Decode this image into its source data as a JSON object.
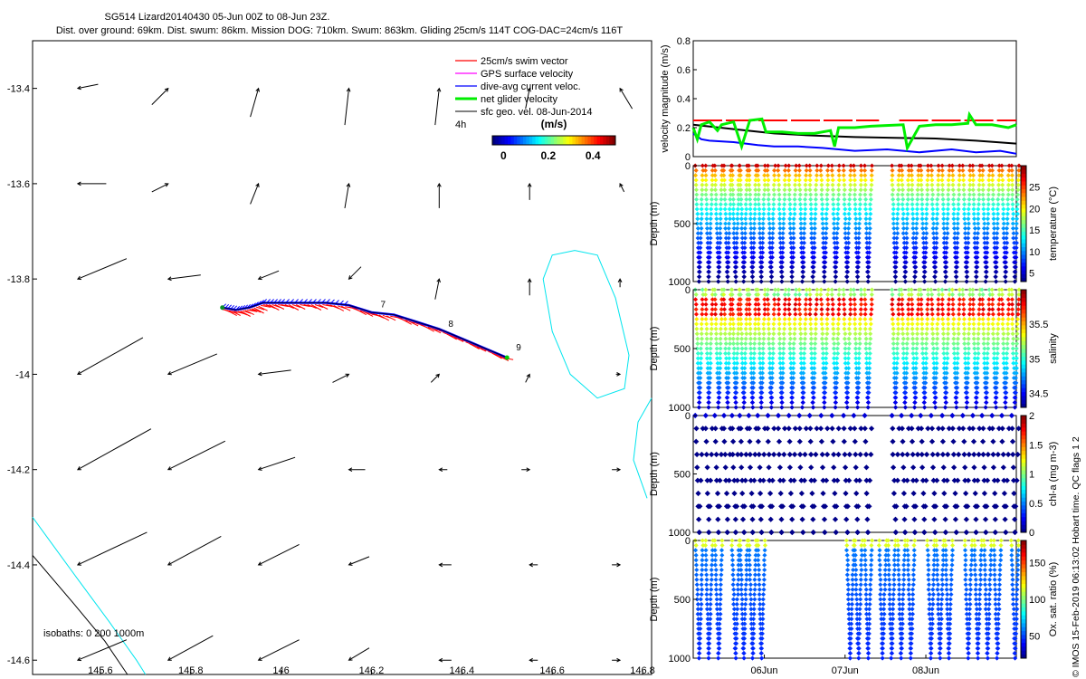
{
  "header": {
    "title_line1": "SG514 Lizard20140430 05-Jun 00Z to 08-Jun 23Z.",
    "title_line2": "Dist. over ground: 69km. Dist. swum: 86km. Mission DOG: 710km. Swum: 863km. Gliding 25cm/s 114T COG-DAC=24cm/s 116T"
  },
  "footer_note": "© IMOS 15-Feb-2019 06:13:02 Hobart time. QC flags 1  2",
  "colors": {
    "swim": "#ff0000",
    "gps": "#ff00ff",
    "dac": "#0000ff",
    "net": "#00ee00",
    "geo": "#000000",
    "isobath": "#00e5ee",
    "isobath_deep": "#000000"
  },
  "chart_data": [
    {
      "id": "map",
      "type": "scatter",
      "title": "Glider track and velocity vectors",
      "xlabel": "",
      "ylabel": "",
      "xlim": [
        145.45,
        146.82
      ],
      "ylim": [
        -14.63,
        -13.3
      ],
      "xticks": [
        145.6,
        145.8,
        146,
        146.2,
        146.4,
        146.6,
        146.8
      ],
      "xtick_labels": [
        "145.6",
        "145.8",
        "146",
        "146.2",
        "146.4",
        "146.6",
        "146.8"
      ],
      "yticks": [
        -13.4,
        -13.6,
        -13.8,
        -14,
        -14.2,
        -14.4,
        -14.6
      ],
      "ytick_labels": [
        "-13.4",
        "-13.6",
        "-13.8",
        "-14",
        "-14.2",
        "-14.4",
        "-14.6"
      ],
      "legend": {
        "position": "top-right",
        "entries": [
          "25cm/s swim vector",
          "GPS surface velocity",
          "dive-avg current veloc.",
          "net glider velocity",
          "sfc geo. vel. 08-Jun-2014"
        ],
        "scale_label": "4h",
        "colorbar_label": "(m/s)",
        "colorbar_ticks": [
          "0",
          "0.2",
          "0.4"
        ],
        "colorbar_range": [
          -0.05,
          0.5
        ]
      },
      "isobath_label": "isobaths: 0   200  1000m",
      "track": [
        [
          145.87,
          -13.86
        ],
        [
          145.9,
          -13.865
        ],
        [
          145.93,
          -13.86
        ],
        [
          145.96,
          -13.85
        ],
        [
          146.0,
          -13.85
        ],
        [
          146.05,
          -13.85
        ],
        [
          146.1,
          -13.85
        ],
        [
          146.15,
          -13.855
        ],
        [
          146.2,
          -13.87
        ],
        [
          146.25,
          -13.875
        ],
        [
          146.3,
          -13.89
        ],
        [
          146.35,
          -13.905
        ],
        [
          146.4,
          -13.925
        ],
        [
          146.45,
          -13.945
        ],
        [
          146.5,
          -13.965
        ]
      ],
      "day_labels": [
        {
          "text": "7",
          "x": 146.22,
          "y": -13.86
        },
        {
          "text": "8",
          "x": 146.37,
          "y": -13.9
        },
        {
          "text": "9",
          "x": 146.52,
          "y": -13.95
        }
      ],
      "geo_vectors": [
        {
          "x": 145.55,
          "y": -13.4,
          "u": 0.05,
          "v": 0.01
        },
        {
          "x": 145.75,
          "y": -13.4,
          "u": -0.04,
          "v": -0.04
        },
        {
          "x": 145.95,
          "y": -13.4,
          "u": -0.02,
          "v": -0.07
        },
        {
          "x": 146.15,
          "y": -13.4,
          "u": -0.01,
          "v": -0.09
        },
        {
          "x": 146.35,
          "y": -13.4,
          "u": -0.01,
          "v": -0.09
        },
        {
          "x": 146.55,
          "y": -13.4,
          "u": -0.01,
          "v": -0.05
        },
        {
          "x": 146.75,
          "y": -13.4,
          "u": 0.03,
          "v": -0.05
        },
        {
          "x": 145.55,
          "y": -13.6,
          "u": 0.07,
          "v": 0.0
        },
        {
          "x": 145.75,
          "y": -13.6,
          "u": -0.04,
          "v": -0.02
        },
        {
          "x": 145.95,
          "y": -13.6,
          "u": -0.02,
          "v": -0.05
        },
        {
          "x": 146.15,
          "y": -13.6,
          "u": -0.01,
          "v": -0.06
        },
        {
          "x": 146.35,
          "y": -13.6,
          "u": 0.0,
          "v": -0.06
        },
        {
          "x": 146.55,
          "y": -13.6,
          "u": 0.0,
          "v": -0.04
        },
        {
          "x": 146.75,
          "y": -13.6,
          "u": 0.01,
          "v": -0.02
        },
        {
          "x": 145.55,
          "y": -13.8,
          "u": 0.12,
          "v": 0.05
        },
        {
          "x": 145.75,
          "y": -13.8,
          "u": 0.08,
          "v": 0.01
        },
        {
          "x": 145.95,
          "y": -13.8,
          "u": 0.05,
          "v": 0.02
        },
        {
          "x": 146.15,
          "y": -13.8,
          "u": 0.03,
          "v": 0.03
        },
        {
          "x": 146.35,
          "y": -13.8,
          "u": -0.01,
          "v": -0.05
        },
        {
          "x": 146.55,
          "y": -13.8,
          "u": 0.0,
          "v": -0.04
        },
        {
          "x": 146.75,
          "y": -13.8,
          "u": 0.0,
          "v": -0.02
        },
        {
          "x": 145.55,
          "y": -14.0,
          "u": 0.16,
          "v": 0.09
        },
        {
          "x": 145.75,
          "y": -14.0,
          "u": 0.12,
          "v": 0.05
        },
        {
          "x": 145.95,
          "y": -14.0,
          "u": 0.08,
          "v": 0.01
        },
        {
          "x": 146.15,
          "y": -14.0,
          "u": -0.04,
          "v": -0.02
        },
        {
          "x": 146.35,
          "y": -14.0,
          "u": -0.02,
          "v": -0.02
        },
        {
          "x": 146.55,
          "y": -14.0,
          "u": -0.01,
          "v": -0.02
        },
        {
          "x": 146.75,
          "y": -14.0,
          "u": -0.01,
          "v": 0.0
        },
        {
          "x": 145.55,
          "y": -14.2,
          "u": 0.18,
          "v": 0.1
        },
        {
          "x": 145.75,
          "y": -14.2,
          "u": 0.14,
          "v": 0.07
        },
        {
          "x": 145.95,
          "y": -14.2,
          "u": 0.09,
          "v": 0.03
        },
        {
          "x": 146.15,
          "y": -14.2,
          "u": 0.04,
          "v": 0.0
        },
        {
          "x": 146.35,
          "y": -14.2,
          "u": 0.02,
          "v": 0.0
        },
        {
          "x": 146.55,
          "y": -14.2,
          "u": -0.02,
          "v": 0.0
        },
        {
          "x": 146.75,
          "y": -14.2,
          "u": -0.02,
          "v": 0.0
        },
        {
          "x": 145.55,
          "y": -14.4,
          "u": 0.17,
          "v": 0.08
        },
        {
          "x": 145.75,
          "y": -14.4,
          "u": 0.13,
          "v": 0.07
        },
        {
          "x": 145.95,
          "y": -14.4,
          "u": 0.1,
          "v": 0.05
        },
        {
          "x": 146.15,
          "y": -14.4,
          "u": 0.05,
          "v": 0.02
        },
        {
          "x": 146.35,
          "y": -14.4,
          "u": 0.03,
          "v": 0.0
        },
        {
          "x": 146.55,
          "y": -14.4,
          "u": 0.02,
          "v": 0.0
        },
        {
          "x": 146.75,
          "y": -14.4,
          "u": -0.02,
          "v": 0.0
        },
        {
          "x": 145.55,
          "y": -14.6,
          "u": 0.12,
          "v": 0.05
        },
        {
          "x": 145.75,
          "y": -14.6,
          "u": 0.11,
          "v": 0.06
        },
        {
          "x": 145.95,
          "y": -14.6,
          "u": 0.1,
          "v": 0.05
        },
        {
          "x": 146.15,
          "y": -14.6,
          "u": 0.05,
          "v": 0.03
        },
        {
          "x": 146.35,
          "y": -14.6,
          "u": 0.03,
          "v": 0.0
        },
        {
          "x": 146.55,
          "y": -14.6,
          "u": 0.02,
          "v": 0.0
        },
        {
          "x": 146.75,
          "y": -14.6,
          "u": -0.02,
          "v": 0.0
        }
      ],
      "isobaths": [
        {
          "depth": "0",
          "points": [
            [
              146.65,
              -13.74
            ],
            [
              146.7,
              -13.75
            ],
            [
              146.74,
              -13.84
            ],
            [
              146.77,
              -13.96
            ],
            [
              146.76,
              -14.03
            ],
            [
              146.7,
              -14.05
            ],
            [
              146.64,
              -14.0
            ],
            [
              146.6,
              -13.91
            ],
            [
              146.58,
              -13.8
            ],
            [
              146.6,
              -13.75
            ],
            [
              146.65,
              -13.74
            ]
          ]
        },
        {
          "depth": "0",
          "points": [
            [
              146.82,
              -14.05
            ],
            [
              146.79,
              -14.1
            ],
            [
              146.78,
              -14.18
            ],
            [
              146.81,
              -14.26
            ]
          ]
        },
        {
          "depth": "0",
          "points": [
            [
              145.45,
              -14.3
            ],
            [
              145.55,
              -14.43
            ],
            [
              145.62,
              -14.52
            ],
            [
              145.68,
              -14.6
            ],
            [
              145.7,
              -14.63
            ]
          ]
        },
        {
          "depth": "1000",
          "points": [
            [
              145.45,
              -14.38
            ],
            [
              145.54,
              -14.48
            ],
            [
              145.61,
              -14.56
            ],
            [
              145.66,
              -14.63
            ]
          ]
        }
      ]
    },
    {
      "id": "velocity",
      "type": "line",
      "title": "",
      "xlabel": "",
      "ylabel": "velocity magnitude (m/s)",
      "xlim": [
        0,
        4
      ],
      "ylim": [
        0,
        0.8
      ],
      "yticks": [
        0,
        0.2,
        0.4,
        0.6,
        0.8
      ],
      "ytick_labels": [
        "0",
        "0.2",
        "0.4",
        "0.6",
        "0.8"
      ],
      "series": [
        {
          "name": "25cm/s swim vector",
          "x": [
            0,
            2.3,
            2.33,
            2.55,
            2.6,
            4
          ],
          "values": [
            0.25,
            0.25,
            null,
            0.25,
            0.25,
            0.25
          ]
        },
        {
          "name": "sfc geo. vel.",
          "x": [
            0,
            0.5,
            1,
            1.5,
            2,
            2.5,
            3,
            3.5,
            4
          ],
          "values": [
            0.22,
            0.19,
            0.16,
            0.145,
            0.135,
            0.13,
            0.125,
            0.11,
            0.09
          ]
        },
        {
          "name": "dive-avg current veloc.",
          "x": [
            0,
            0.1,
            0.2,
            0.5,
            0.8,
            1.0,
            1.3,
            1.6,
            2.0,
            2.4,
            2.8,
            3.2,
            3.5,
            3.8,
            4
          ],
          "values": [
            0.16,
            0.12,
            0.11,
            0.1,
            0.08,
            0.07,
            0.07,
            0.06,
            0.04,
            0.05,
            0.03,
            0.05,
            0.03,
            0.04,
            0.02
          ]
        },
        {
          "name": "net glider velocity",
          "x": [
            0,
            0.05,
            0.1,
            0.2,
            0.3,
            0.35,
            0.5,
            0.6,
            0.7,
            0.85,
            0.9,
            1.0,
            1.1,
            1.3,
            1.5,
            1.7,
            1.75,
            1.8,
            2.0,
            2.2,
            2.6,
            2.65,
            2.8,
            3.0,
            3.2,
            3.4,
            3.42,
            3.5,
            3.7,
            3.9,
            4
          ],
          "values": [
            0.2,
            0.12,
            0.22,
            0.24,
            0.18,
            0.22,
            0.24,
            0.07,
            0.25,
            0.26,
            0.17,
            0.17,
            0.17,
            0.16,
            0.16,
            0.18,
            0.07,
            0.2,
            0.2,
            0.21,
            0.22,
            0.06,
            0.21,
            0.22,
            0.22,
            0.23,
            0.29,
            0.22,
            0.22,
            0.2,
            0.22
          ]
        }
      ]
    },
    {
      "id": "temperature",
      "type": "scatter",
      "ylabel": "Depth (m)",
      "colorbar_label": "temperature (°C)",
      "ylim": [
        1000,
        0
      ],
      "yticks": [
        0,
        500,
        1000
      ],
      "ytick_labels": [
        "0",
        "500",
        "1000"
      ],
      "color_range": [
        3,
        30
      ],
      "colorbar_ticks": [
        5,
        10,
        15,
        20,
        25
      ],
      "colorbar_tick_labels": [
        "5",
        "10",
        "15",
        "20",
        "25"
      ],
      "profile_type": "temperature",
      "dives": [
        0.03,
        0.15,
        0.27,
        0.38,
        0.48,
        0.58,
        0.69,
        0.8,
        0.92,
        1.05,
        1.18,
        1.31,
        1.44,
        1.58,
        1.72,
        1.86,
        1.99,
        2.12,
        2.46,
        2.58,
        2.7,
        2.82,
        2.95,
        3.08,
        3.21,
        3.34,
        3.46,
        3.58,
        3.7,
        3.82,
        3.94
      ],
      "gaps": [
        [
          2.25,
          2.4
        ]
      ]
    },
    {
      "id": "salinity",
      "type": "scatter",
      "ylabel": "Depth (m)",
      "colorbar_label": "salinity",
      "ylim": [
        1000,
        0
      ],
      "yticks": [
        0,
        500,
        1000
      ],
      "ytick_labels": [
        "0",
        "500",
        "1000"
      ],
      "color_range": [
        34.3,
        36.0
      ],
      "colorbar_ticks": [
        34.5,
        35,
        35.5
      ],
      "colorbar_tick_labels": [
        "34.5",
        "35",
        "35.5"
      ],
      "profile_type": "salinity",
      "dives": [
        0.03,
        0.15,
        0.27,
        0.38,
        0.48,
        0.58,
        0.69,
        0.8,
        0.92,
        1.05,
        1.18,
        1.31,
        1.44,
        1.58,
        1.72,
        1.86,
        1.99,
        2.12,
        2.46,
        2.58,
        2.7,
        2.82,
        2.95,
        3.08,
        3.21,
        3.34,
        3.46,
        3.58,
        3.7,
        3.82,
        3.94
      ],
      "gaps": [
        [
          2.25,
          2.4
        ]
      ]
    },
    {
      "id": "chla",
      "type": "scatter",
      "ylabel": "Depth (m)",
      "colorbar_label": "chl-a (mg m-3)",
      "ylim": [
        1000,
        0
      ],
      "yticks": [
        0,
        500,
        1000
      ],
      "ytick_labels": [
        "0",
        "500",
        "1000"
      ],
      "color_range": [
        0,
        2
      ],
      "colorbar_ticks": [
        0,
        0.5,
        1,
        1.5,
        2
      ],
      "colorbar_tick_labels": [
        "0",
        "0.5",
        "1",
        "1.5",
        "2"
      ],
      "profile_type": "chla",
      "dives": [
        0.03,
        0.15,
        0.27,
        0.38,
        0.48,
        0.58,
        0.69,
        0.8,
        0.92,
        1.05,
        1.18,
        1.31,
        1.44,
        1.58,
        1.72,
        1.86,
        1.99,
        2.12,
        2.46,
        2.58,
        2.7,
        2.82,
        2.95,
        3.08,
        3.21,
        3.34,
        3.46,
        3.58,
        3.7,
        3.82,
        3.94
      ],
      "gaps": [
        [
          2.25,
          2.4
        ]
      ]
    },
    {
      "id": "oxygen",
      "type": "scatter",
      "ylabel": "Depth (m)",
      "colorbar_label": "Ox. sat. ratio (%)",
      "ylim": [
        1000,
        0
      ],
      "yticks": [
        0,
        500,
        1000
      ],
      "ytick_labels": [
        "0",
        "500",
        "1000"
      ],
      "xticks": [
        0.88,
        1.88,
        2.88
      ],
      "xtick_labels": [
        "06Jun",
        "07Jun",
        "08Jun"
      ],
      "color_range": [
        20,
        180
      ],
      "colorbar_ticks": [
        50,
        100,
        150
      ],
      "colorbar_tick_labels": [
        "50",
        "100",
        "150"
      ],
      "profile_type": "oxygen",
      "dives": [
        0.03,
        0.15,
        0.27,
        0.48,
        0.58,
        0.69,
        0.8,
        1.9,
        2.0,
        2.12,
        2.3,
        2.41,
        2.53,
        2.65,
        2.9,
        3.01,
        3.12,
        3.36,
        3.48,
        3.6,
        3.72,
        3.94
      ],
      "gaps": [
        [
          0.9,
          1.8
        ],
        [
          2.75,
          2.85
        ],
        [
          3.2,
          3.3
        ]
      ]
    }
  ]
}
